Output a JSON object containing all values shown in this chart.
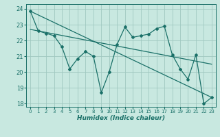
{
  "title": "",
  "xlabel": "Humidex (Indice chaleur)",
  "background_color": "#c8e8e0",
  "grid_color": "#a0c8c0",
  "line_color": "#1a7068",
  "xlim": [
    -0.5,
    23.5
  ],
  "ylim": [
    17.8,
    24.3
  ],
  "yticks": [
    18,
    19,
    20,
    21,
    22,
    23,
    24
  ],
  "xticks": [
    0,
    1,
    2,
    3,
    4,
    5,
    6,
    7,
    8,
    9,
    10,
    11,
    12,
    13,
    14,
    15,
    16,
    17,
    18,
    19,
    20,
    21,
    22,
    23
  ],
  "line1_x": [
    0,
    1,
    2,
    3,
    4,
    5,
    6,
    7,
    8,
    9,
    10,
    11,
    12,
    13,
    14,
    15,
    16,
    17,
    18,
    19,
    20,
    21,
    22,
    23
  ],
  "line1_y": [
    23.85,
    22.6,
    22.45,
    22.3,
    21.6,
    20.2,
    20.85,
    21.3,
    21.0,
    18.7,
    20.0,
    21.75,
    22.85,
    22.2,
    22.3,
    22.4,
    22.75,
    22.9,
    21.1,
    20.2,
    19.55,
    21.1,
    18.0,
    18.4
  ],
  "line2_x": [
    0,
    23
  ],
  "line2_y": [
    22.7,
    20.5
  ],
  "line3_x": [
    0,
    23
  ],
  "line3_y": [
    23.85,
    18.4
  ]
}
